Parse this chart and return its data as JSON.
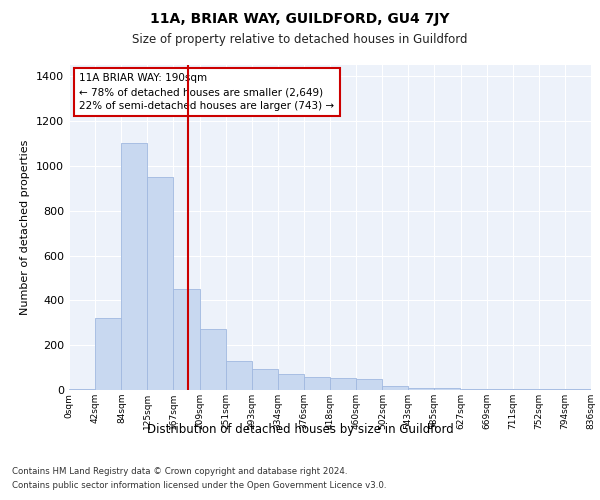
{
  "title": "11A, BRIAR WAY, GUILDFORD, GU4 7JY",
  "subtitle": "Size of property relative to detached houses in Guildford",
  "xlabel": "Distribution of detached houses by size in Guildford",
  "ylabel": "Number of detached properties",
  "footnote1": "Contains HM Land Registry data © Crown copyright and database right 2024.",
  "footnote2": "Contains public sector information licensed under the Open Government Licence v3.0.",
  "annotation_title": "11A BRIAR WAY: 190sqm",
  "annotation_line1": "← 78% of detached houses are smaller (2,649)",
  "annotation_line2": "22% of semi-detached houses are larger (743) →",
  "red_line_x": 190,
  "bar_color": "#c8d8f0",
  "bar_edge_color": "#a0b8e0",
  "red_line_color": "#cc0000",
  "background_color": "#edf2fa",
  "categories": [
    "0sqm",
    "42sqm",
    "84sqm",
    "125sqm",
    "167sqm",
    "209sqm",
    "251sqm",
    "293sqm",
    "334sqm",
    "376sqm",
    "418sqm",
    "460sqm",
    "502sqm",
    "543sqm",
    "585sqm",
    "627sqm",
    "669sqm",
    "711sqm",
    "752sqm",
    "794sqm",
    "836sqm"
  ],
  "bin_edges": [
    0,
    42,
    84,
    125,
    167,
    209,
    251,
    293,
    334,
    376,
    418,
    460,
    502,
    543,
    585,
    627,
    669,
    711,
    752,
    794,
    836
  ],
  "values": [
    5,
    320,
    1100,
    950,
    450,
    270,
    130,
    95,
    70,
    60,
    55,
    50,
    20,
    8,
    8,
    5,
    5,
    3,
    3,
    3,
    3
  ],
  "ylim": [
    0,
    1450
  ],
  "yticks": [
    0,
    200,
    400,
    600,
    800,
    1000,
    1200,
    1400
  ]
}
